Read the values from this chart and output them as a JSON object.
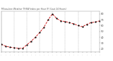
{
  "title": "Milwaukee Weather THSW Index per Hour (F) (Last 24 Hours)",
  "x_values": [
    0,
    1,
    2,
    3,
    4,
    5,
    6,
    7,
    8,
    9,
    10,
    11,
    12,
    13,
    14,
    15,
    16,
    17,
    18,
    19,
    20,
    21,
    22,
    23
  ],
  "y_values": [
    28,
    25,
    23,
    22,
    21,
    21,
    27,
    33,
    40,
    48,
    57,
    70,
    80,
    72,
    68,
    67,
    65,
    63,
    60,
    58,
    62,
    65,
    66,
    68
  ],
  "y_min": 15,
  "y_max": 85,
  "line_color": "#cc0000",
  "marker_color": "#000000",
  "bg_color": "#ffffff",
  "grid_color": "#aaaaaa",
  "title_color": "#555555",
  "tick_label_color": "#444444",
  "y_ticks": [
    20,
    30,
    40,
    50,
    60,
    70,
    80
  ],
  "y_tick_labels": [
    "20",
    "30",
    "40",
    "50",
    "60",
    "70",
    "80"
  ],
  "x_grid_positions": [
    0,
    3,
    6,
    9,
    12,
    15,
    18,
    21
  ]
}
